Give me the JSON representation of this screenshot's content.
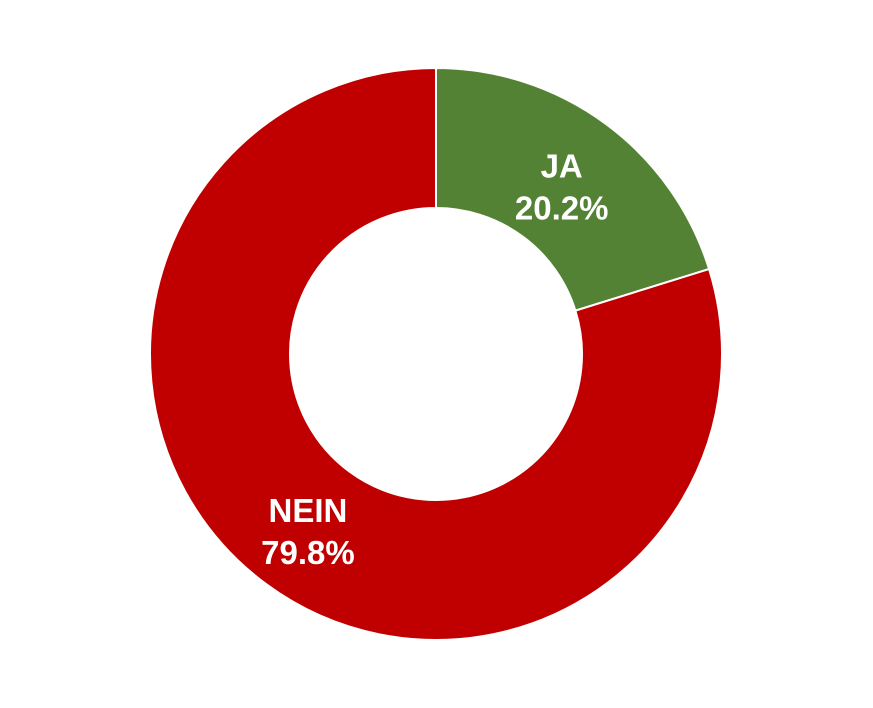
{
  "chart_data": {
    "type": "pie",
    "variant": "donut",
    "title": "",
    "slices": [
      {
        "label": "JA",
        "value": 20.2,
        "display": "20.2%",
        "color": "#548235"
      },
      {
        "label": "NEIN",
        "value": 79.8,
        "display": "79.8%",
        "color": "#C00000"
      }
    ],
    "legend": "none",
    "background": "#FFFFFF"
  }
}
